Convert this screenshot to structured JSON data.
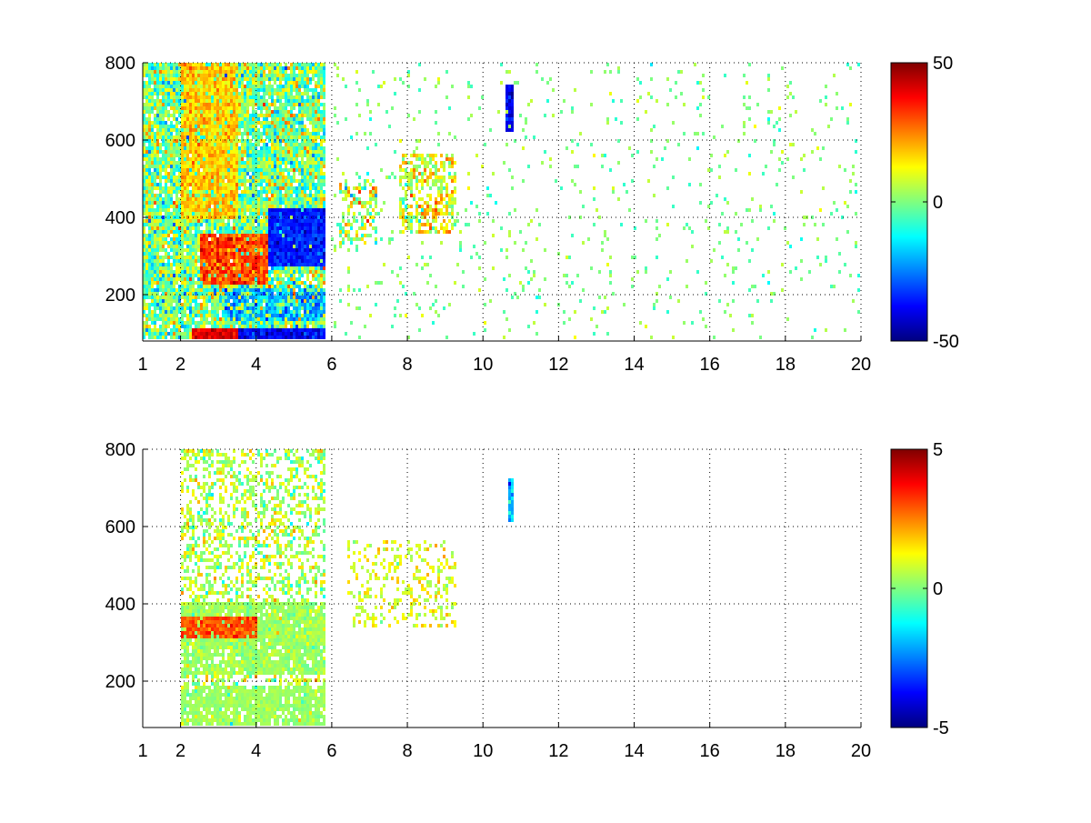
{
  "chart_data": [
    {
      "type": "heatmap",
      "title": "",
      "xlabel": "",
      "ylabel": "",
      "xlim": [
        1,
        20
      ],
      "ylim": [
        80,
        800
      ],
      "xticks": [
        1,
        2,
        4,
        6,
        8,
        10,
        12,
        14,
        16,
        18,
        20
      ],
      "xtick_labels": [
        "1",
        "2",
        "4",
        "6",
        "8",
        "10",
        "12",
        "14",
        "16",
        "18",
        "20"
      ],
      "yticks": [
        200,
        400,
        600,
        800
      ],
      "ytick_labels": [
        "200",
        "400",
        "600",
        "800"
      ],
      "grid": true,
      "colormap": "jet",
      "colorbar": {
        "min": -50,
        "max": 50,
        "ticks": [
          -50,
          0,
          50
        ],
        "tick_labels": [
          "-50",
          "0",
          "50"
        ]
      },
      "features": [
        {
          "x_range": [
            1.0,
            5.8
          ],
          "y_range": [
            80,
            800
          ],
          "density": 0.92,
          "value": 0,
          "spread": 22
        },
        {
          "x_range": [
            2.5,
            4.3
          ],
          "y_range": [
            230,
            360
          ],
          "density": 0.95,
          "value": 30,
          "spread": 12
        },
        {
          "x_range": [
            4.3,
            5.8
          ],
          "y_range": [
            270,
            420
          ],
          "density": 0.95,
          "value": -35,
          "spread": 10
        },
        {
          "x_range": [
            2.3,
            3.5
          ],
          "y_range": [
            85,
            115
          ],
          "density": 1.0,
          "value": 40,
          "spread": 8
        },
        {
          "x_range": [
            3.5,
            5.8
          ],
          "y_range": [
            85,
            115
          ],
          "density": 1.0,
          "value": -38,
          "spread": 10
        },
        {
          "x_range": [
            3.2,
            5.8
          ],
          "y_range": [
            130,
            220
          ],
          "density": 0.7,
          "value": -20,
          "spread": 12
        },
        {
          "x_range": [
            2.0,
            3.5
          ],
          "y_range": [
            400,
            800
          ],
          "density": 0.85,
          "value": 18,
          "spread": 10
        },
        {
          "x_range": [
            6.2,
            7.2
          ],
          "y_range": [
            330,
            500
          ],
          "density": 0.5,
          "value": 8,
          "spread": 25
        },
        {
          "x_range": [
            7.8,
            9.3
          ],
          "y_range": [
            360,
            560
          ],
          "density": 0.55,
          "value": 10,
          "spread": 20
        },
        {
          "x_range": [
            10.6,
            10.8
          ],
          "y_range": [
            620,
            740
          ],
          "density": 1.0,
          "value": -40,
          "spread": 10
        },
        {
          "x_range": [
            6.0,
            20.0
          ],
          "y_range": [
            80,
            800
          ],
          "density": 0.05,
          "value": 0,
          "spread": 10
        }
      ]
    },
    {
      "type": "heatmap",
      "title": "",
      "xlabel": "",
      "ylabel": "",
      "xlim": [
        1,
        20
      ],
      "ylim": [
        80,
        800
      ],
      "xticks": [
        1,
        2,
        4,
        6,
        8,
        10,
        12,
        14,
        16,
        18,
        20
      ],
      "xtick_labels": [
        "1",
        "2",
        "4",
        "6",
        "8",
        "10",
        "12",
        "14",
        "16",
        "18",
        "20"
      ],
      "yticks": [
        200,
        400,
        600,
        800
      ],
      "ytick_labels": [
        "200",
        "400",
        "600",
        "800"
      ],
      "grid": true,
      "colormap": "jet",
      "colorbar": {
        "min": -5,
        "max": 5,
        "ticks": [
          -5,
          0,
          5
        ],
        "tick_labels": [
          "-5",
          "0",
          "5"
        ]
      },
      "features": [
        {
          "x_range": [
            2.0,
            5.8
          ],
          "y_range": [
            80,
            800
          ],
          "density": 0.45,
          "value": 0.5,
          "spread": 1.5
        },
        {
          "x_range": [
            2.0,
            5.8
          ],
          "y_range": [
            220,
            400
          ],
          "density": 0.85,
          "value": 0.3,
          "spread": 0.6
        },
        {
          "x_range": [
            2.0,
            5.8
          ],
          "y_range": [
            85,
            190
          ],
          "density": 0.8,
          "value": 0.3,
          "spread": 0.4
        },
        {
          "x_range": [
            2.0,
            4.0
          ],
          "y_range": [
            310,
            370
          ],
          "density": 0.9,
          "value": 3.0,
          "spread": 0.8
        },
        {
          "x_range": [
            6.4,
            9.3
          ],
          "y_range": [
            340,
            560
          ],
          "density": 0.3,
          "value": 1.0,
          "spread": 1.0
        },
        {
          "x_range": [
            10.65,
            10.8
          ],
          "y_range": [
            610,
            720
          ],
          "density": 1.0,
          "value": -2.0,
          "spread": 1.5
        }
      ]
    }
  ]
}
